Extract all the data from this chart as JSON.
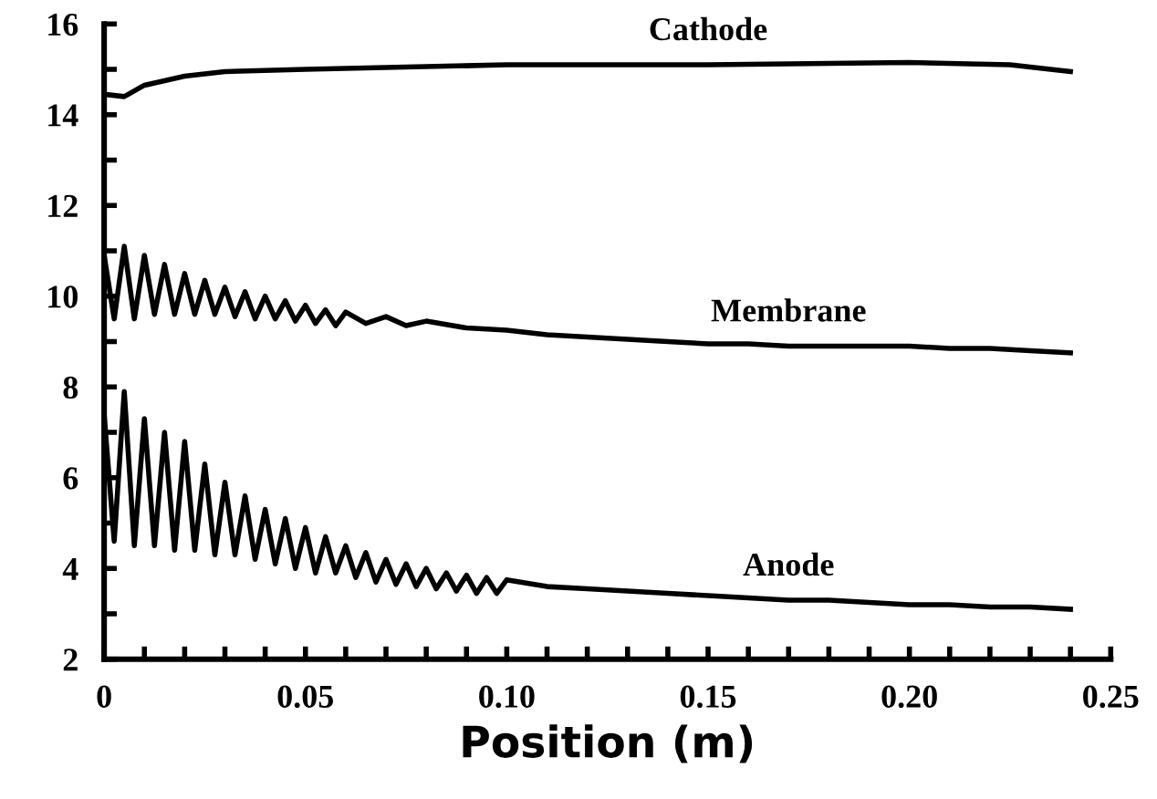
{
  "chart_data": {
    "type": "line",
    "xlabel": "Position (m)",
    "xlim": [
      0,
      0.25
    ],
    "ylim": [
      2,
      16
    ],
    "xticks": [
      0,
      {
        "value": 0.01,
        "label": null
      },
      {
        "value": 0.02,
        "label": null
      },
      {
        "value": 0.03,
        "label": null
      },
      {
        "value": 0.04,
        "label": null
      },
      {
        "value": 0.05,
        "label": "0.05"
      },
      {
        "value": 0.06,
        "label": null
      },
      {
        "value": 0.07,
        "label": null
      },
      {
        "value": 0.08,
        "label": null
      },
      {
        "value": 0.09,
        "label": null
      },
      {
        "value": 0.1,
        "label": "0.10"
      },
      {
        "value": 0.11,
        "label": null
      },
      {
        "value": 0.12,
        "label": null
      },
      {
        "value": 0.13,
        "label": null
      },
      {
        "value": 0.14,
        "label": null
      },
      {
        "value": 0.15,
        "label": "0.15"
      },
      {
        "value": 0.16,
        "label": null
      },
      {
        "value": 0.17,
        "label": null
      },
      {
        "value": 0.18,
        "label": null
      },
      {
        "value": 0.19,
        "label": null
      },
      {
        "value": 0.2,
        "label": "0.20"
      },
      {
        "value": 0.21,
        "label": null
      },
      {
        "value": 0.22,
        "label": null
      },
      {
        "value": 0.23,
        "label": null
      },
      {
        "value": 0.24,
        "label": null
      },
      {
        "value": 0.25,
        "label": "0.25"
      }
    ],
    "yticks": [
      2,
      {
        "value": 3,
        "label": null
      },
      4,
      {
        "value": 5,
        "label": null
      },
      6,
      {
        "value": 7,
        "label": null
      },
      8,
      {
        "value": 9,
        "label": null
      },
      10,
      {
        "value": 11,
        "label": null
      },
      12,
      {
        "value": 13,
        "label": null
      },
      14,
      {
        "value": 15,
        "label": null
      },
      16
    ],
    "grid": false,
    "legend": false,
    "marker": "none",
    "line_style": "solid",
    "series": [
      {
        "name": "Cathode",
        "color": "#000000",
        "x": [
          0,
          0.005,
          0.01,
          0.02,
          0.03,
          0.05,
          0.1,
          0.15,
          0.2,
          0.225,
          0.235,
          0.24
        ],
        "values": [
          14.45,
          14.4,
          14.65,
          14.85,
          14.95,
          15.0,
          15.1,
          15.1,
          15.15,
          15.1,
          15.0,
          14.95
        ]
      },
      {
        "name": "Membrane",
        "color": "#000000",
        "x": [
          0,
          0.0025,
          0.005,
          0.0075,
          0.01,
          0.0125,
          0.015,
          0.0175,
          0.02,
          0.0225,
          0.025,
          0.0275,
          0.03,
          0.0325,
          0.035,
          0.0375,
          0.04,
          0.0425,
          0.045,
          0.0475,
          0.05,
          0.0525,
          0.055,
          0.0575,
          0.06,
          0.065,
          0.07,
          0.075,
          0.08,
          0.09,
          0.1,
          0.11,
          0.12,
          0.13,
          0.14,
          0.15,
          0.16,
          0.17,
          0.18,
          0.19,
          0.2,
          0.21,
          0.22,
          0.23,
          0.24
        ],
        "values": [
          10.9,
          9.5,
          11.1,
          9.5,
          10.9,
          9.6,
          10.7,
          9.6,
          10.5,
          9.6,
          10.35,
          9.6,
          10.2,
          9.55,
          10.1,
          9.5,
          10.0,
          9.5,
          9.9,
          9.45,
          9.8,
          9.4,
          9.7,
          9.35,
          9.65,
          9.4,
          9.55,
          9.35,
          9.45,
          9.3,
          9.25,
          9.15,
          9.1,
          9.05,
          9.0,
          8.95,
          8.95,
          8.9,
          8.9,
          8.9,
          8.9,
          8.85,
          8.85,
          8.8,
          8.75
        ]
      },
      {
        "name": "Anode",
        "color": "#000000",
        "x": [
          0,
          0.0025,
          0.005,
          0.0075,
          0.01,
          0.0125,
          0.015,
          0.0175,
          0.02,
          0.0225,
          0.025,
          0.0275,
          0.03,
          0.0325,
          0.035,
          0.0375,
          0.04,
          0.0425,
          0.045,
          0.0475,
          0.05,
          0.0525,
          0.055,
          0.0575,
          0.06,
          0.0625,
          0.065,
          0.0675,
          0.07,
          0.0725,
          0.075,
          0.0775,
          0.08,
          0.0825,
          0.085,
          0.0875,
          0.09,
          0.0925,
          0.095,
          0.0975,
          0.1,
          0.11,
          0.12,
          0.13,
          0.14,
          0.15,
          0.16,
          0.17,
          0.18,
          0.19,
          0.2,
          0.21,
          0.22,
          0.23,
          0.24
        ],
        "values": [
          7.4,
          4.6,
          7.9,
          4.5,
          7.3,
          4.5,
          7.0,
          4.4,
          6.8,
          4.4,
          6.3,
          4.3,
          5.9,
          4.3,
          5.6,
          4.2,
          5.3,
          4.1,
          5.1,
          4.0,
          4.9,
          3.9,
          4.7,
          3.9,
          4.5,
          3.8,
          4.35,
          3.7,
          4.2,
          3.65,
          4.1,
          3.6,
          4.0,
          3.55,
          3.9,
          3.5,
          3.85,
          3.45,
          3.8,
          3.45,
          3.75,
          3.6,
          3.55,
          3.5,
          3.45,
          3.4,
          3.35,
          3.3,
          3.3,
          3.25,
          3.2,
          3.2,
          3.15,
          3.15,
          3.1
        ]
      }
    ]
  }
}
